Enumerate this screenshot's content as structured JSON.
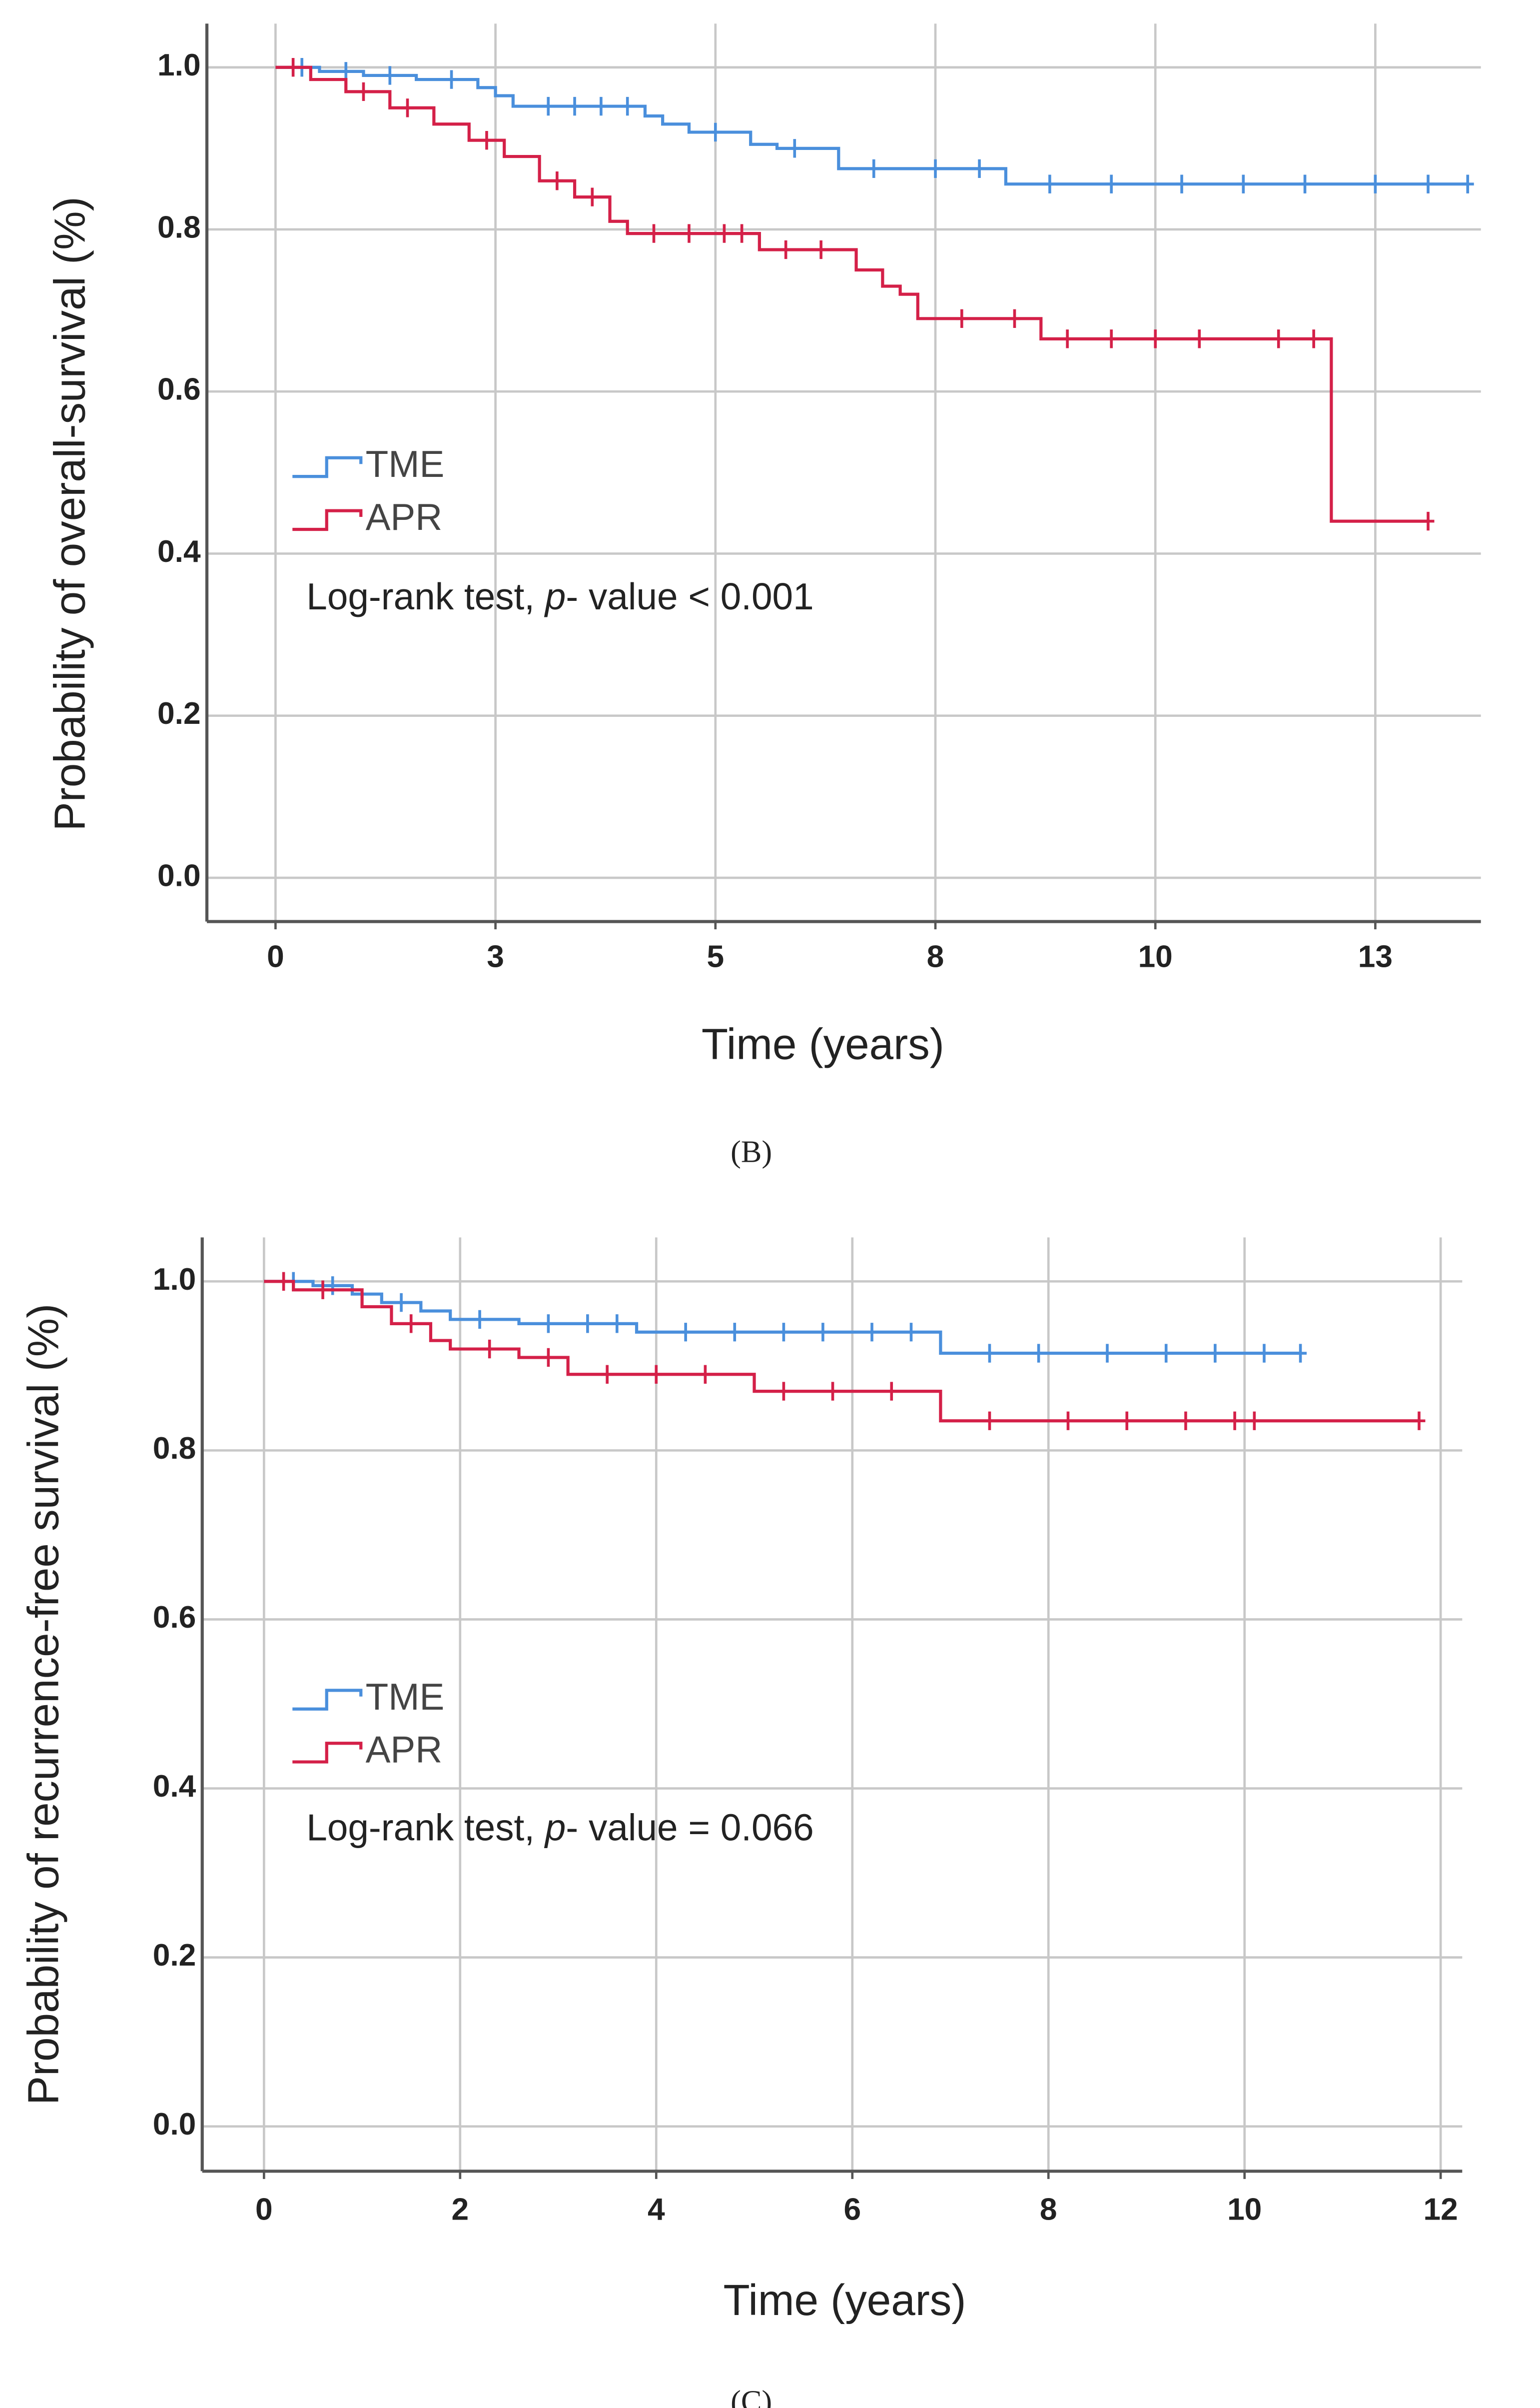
{
  "chart_data": [
    {
      "type": "step",
      "caption": "(B)",
      "xlabel": "Time (years)",
      "ylabel": "Probability of overall-survival (%)",
      "annotation": [
        "Log-rank test, ",
        "p",
        "- value < 0.001"
      ],
      "xlim": [
        -0.78,
        13.7
      ],
      "ylim": [
        -0.054,
        1.054
      ],
      "xticks": [
        0,
        {
          "value": 2.5,
          "label": "3"
        },
        5,
        {
          "value": 7.5,
          "label": "8"
        },
        10,
        {
          "value": 12.5,
          "label": "13"
        }
      ],
      "yticks": [
        {
          "value": 0,
          "label": "0.0"
        },
        {
          "value": 0.2,
          "label": "0.2"
        },
        {
          "value": 0.4,
          "label": "0.4"
        },
        {
          "value": 0.6,
          "label": "0.6"
        },
        {
          "value": 0.8,
          "label": "0.8"
        },
        {
          "value": 1,
          "label": "1.0"
        }
      ],
      "grid": true,
      "series": [
        {
          "name": "TME",
          "color": "#4a8fdc",
          "x": [
            0,
            0.5,
            1.0,
            1.6,
            2.3,
            2.5,
            2.7,
            4.2,
            4.4,
            4.7,
            5.4,
            5.7,
            6.4,
            8.3,
            13.55
          ],
          "values": [
            1.0,
            0.995,
            0.99,
            0.985,
            0.975,
            0.965,
            0.952,
            0.94,
            0.93,
            0.92,
            0.905,
            0.9,
            0.875,
            0.856,
            0.856
          ],
          "censored_x": [
            0.3,
            0.8,
            1.3,
            2.0,
            3.1,
            3.4,
            3.7,
            4.0,
            5.0,
            5.9,
            6.8,
            7.5,
            8.0,
            8.8,
            9.5,
            10.3,
            11.0,
            11.7,
            12.5,
            13.1,
            13.55
          ]
        },
        {
          "name": "APR",
          "color": "#d42048",
          "x": [
            0,
            0.4,
            0.8,
            1.3,
            1.8,
            2.2,
            2.6,
            3.0,
            3.4,
            3.8,
            4.0,
            5.5,
            6.6,
            6.9,
            7.1,
            7.3,
            8.7,
            12.0,
            13.1
          ],
          "values": [
            1.0,
            0.985,
            0.97,
            0.95,
            0.93,
            0.91,
            0.89,
            0.86,
            0.84,
            0.81,
            0.795,
            0.775,
            0.75,
            0.73,
            0.72,
            0.69,
            0.665,
            0.44,
            0.44
          ],
          "censored_x": [
            0.2,
            1.0,
            1.5,
            2.4,
            3.2,
            3.6,
            4.3,
            4.7,
            5.1,
            5.3,
            5.8,
            6.2,
            7.8,
            8.4,
            9.0,
            9.5,
            10.0,
            10.5,
            11.4,
            11.8,
            13.1
          ]
        }
      ]
    },
    {
      "type": "step",
      "caption": "(C)",
      "xlabel": "Time (years)",
      "ylabel": "Probability of recurrence-free survival (%)",
      "annotation": [
        "Log-rank test, ",
        "p",
        "- value = 0.066"
      ],
      "xlim": [
        -0.63,
        12.22
      ],
      "ylim": [
        -0.053,
        1.052
      ],
      "xticks": [
        0,
        2,
        4,
        6,
        8,
        10,
        12
      ],
      "yticks": [
        {
          "value": 0,
          "label": "0.0"
        },
        {
          "value": 0.2,
          "label": "0.2"
        },
        {
          "value": 0.4,
          "label": "0.4"
        },
        {
          "value": 0.6,
          "label": "0.6"
        },
        {
          "value": 0.8,
          "label": "0.8"
        },
        {
          "value": 1,
          "label": "1.0"
        }
      ],
      "grid": true,
      "series": [
        {
          "name": "TME",
          "color": "#4a8fdc",
          "x": [
            0,
            0.5,
            0.9,
            1.2,
            1.6,
            1.9,
            2.6,
            3.8,
            6.9,
            10.57
          ],
          "values": [
            1.0,
            0.995,
            0.985,
            0.975,
            0.965,
            0.955,
            0.95,
            0.94,
            0.915,
            0.915
          ],
          "censored_x": [
            0.3,
            0.7,
            1.4,
            2.2,
            2.9,
            3.3,
            3.6,
            4.3,
            4.8,
            5.3,
            5.7,
            6.2,
            6.6,
            7.4,
            7.9,
            8.6,
            9.2,
            9.7,
            10.2,
            10.57
          ]
        },
        {
          "name": "APR",
          "color": "#d42048",
          "x": [
            0,
            0.3,
            1.0,
            1.3,
            1.7,
            1.9,
            2.6,
            3.1,
            5.0,
            6.9,
            11.78
          ],
          "values": [
            1.0,
            0.99,
            0.97,
            0.95,
            0.93,
            0.92,
            0.91,
            0.89,
            0.87,
            0.835,
            0.835
          ],
          "censored_x": [
            0.2,
            0.6,
            1.5,
            2.3,
            2.9,
            3.5,
            4.0,
            4.5,
            5.3,
            5.8,
            6.4,
            7.4,
            8.2,
            8.8,
            9.4,
            9.9,
            10.1,
            11.78
          ]
        }
      ]
    }
  ]
}
